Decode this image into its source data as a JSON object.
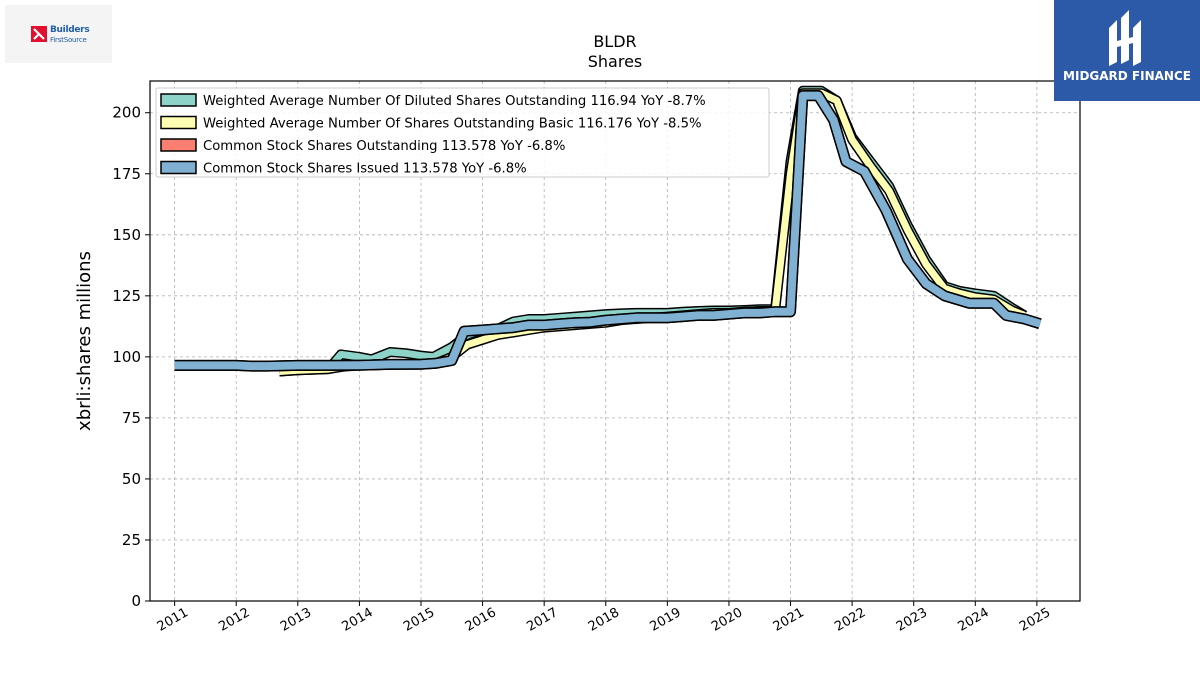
{
  "branding": {
    "company_logo_text_1": "Builders",
    "company_logo_text_2": "FirstSource",
    "partner_logo_text": "MIDGARD FINANCE"
  },
  "chart_data": {
    "type": "area",
    "title": "BLDR",
    "subtitle": "Shares",
    "xlabel": "",
    "ylabel": "xbrli:shares millions",
    "xlim": [
      2010.6,
      2025.7
    ],
    "ylim": [
      0,
      213
    ],
    "grid": true,
    "legend_position": "top-left",
    "x_ticks": [
      "2011",
      "2012",
      "2013",
      "2014",
      "2015",
      "2016",
      "2017",
      "2018",
      "2019",
      "2020",
      "2021",
      "2022",
      "2023",
      "2024",
      "2025"
    ],
    "y_ticks": [
      0,
      25,
      50,
      75,
      100,
      125,
      150,
      175,
      200
    ],
    "series": [
      {
        "name": "Weighted Average Number Of Diluted Shares Outstanding",
        "legend_label": "Weighted Average Number Of Diluted Shares Outstanding  116.94 YoY -8.7%",
        "color": "#8dd3c7",
        "x": [
          2012.7,
          2013.0,
          2013.5,
          2013.7,
          2014.0,
          2014.2,
          2014.5,
          2014.75,
          2015.0,
          2015.2,
          2015.5,
          2015.75,
          2016.0,
          2016.25,
          2016.5,
          2016.75,
          2017.0,
          2017.25,
          2017.5,
          2017.75,
          2018.0,
          2018.25,
          2018.5,
          2018.75,
          2019.0,
          2019.25,
          2019.5,
          2019.75,
          2020.0,
          2020.25,
          2020.5,
          2020.75,
          2021.0,
          2021.2,
          2021.5,
          2021.75,
          2022.0,
          2022.3,
          2022.6,
          2022.9,
          2023.2,
          2023.5,
          2023.75,
          2024.0,
          2024.3,
          2024.6,
          2024.8
        ],
        "values": [
          94,
          94.5,
          95,
          101,
          100,
          99,
          102,
          101.5,
          100.5,
          100,
          104,
          109,
          111,
          111.5,
          114.5,
          115.5,
          115.5,
          116,
          116.5,
          117,
          117.5,
          117.8,
          118,
          118,
          118,
          118.5,
          118.8,
          119,
          119,
          119.2,
          119.5,
          119.5,
          180,
          209,
          209,
          205,
          190,
          180,
          170,
          154,
          140,
          129,
          127,
          126,
          125,
          120,
          117
        ]
      },
      {
        "name": "Weighted Average Number Of Shares Outstanding Basic",
        "legend_label": "Weighted Average Number Of Shares Outstanding Basic  116.176 YoY -8.5%",
        "color": "#ffffb3",
        "x": [
          2012.7,
          2013.0,
          2013.5,
          2013.75,
          2014.0,
          2014.25,
          2014.5,
          2014.75,
          2015.0,
          2015.25,
          2015.5,
          2015.75,
          2016.0,
          2016.25,
          2016.5,
          2016.75,
          2017.0,
          2017.25,
          2017.5,
          2017.75,
          2018.0,
          2018.25,
          2018.5,
          2018.75,
          2019.0,
          2019.25,
          2019.5,
          2019.75,
          2020.0,
          2020.25,
          2020.5,
          2020.75,
          2021.0,
          2021.2,
          2021.5,
          2021.75,
          2022.0,
          2022.3,
          2022.6,
          2022.9,
          2023.2,
          2023.5,
          2023.75,
          2024.0,
          2024.3,
          2024.6,
          2024.8
        ],
        "values": [
          94,
          94.5,
          95,
          96,
          96.5,
          97,
          97,
          97,
          97,
          97.5,
          100,
          105,
          107,
          109,
          110,
          111,
          112,
          112.5,
          113,
          113.5,
          114,
          115,
          115.5,
          116,
          116.5,
          117,
          117.5,
          118,
          118,
          118.5,
          118.8,
          118.8,
          175,
          208,
          208,
          205,
          189,
          178,
          168,
          152,
          138,
          128,
          126,
          124.5,
          123.5,
          119,
          117
        ]
      },
      {
        "name": "Common Stock Shares Outstanding",
        "legend_label": "Common Stock Shares Outstanding  113.578 YoY -6.8%",
        "color": "#fb8072",
        "x": [
          2011.0,
          2011.5,
          2012.0,
          2012.25,
          2012.5,
          2013.0,
          2013.5,
          2014.0,
          2014.5,
          2015.0,
          2015.25,
          2015.5,
          2015.7,
          2016.0,
          2016.25,
          2016.5,
          2016.75,
          2017.0,
          2017.25,
          2017.5,
          2017.75,
          2018.0,
          2018.25,
          2018.5,
          2018.75,
          2019.0,
          2019.25,
          2019.5,
          2019.75,
          2020.0,
          2020.25,
          2020.5,
          2020.75,
          2021.0,
          2021.2,
          2021.45,
          2021.7,
          2021.9,
          2022.2,
          2022.55,
          2022.9,
          2023.2,
          2023.5,
          2023.9,
          2024.1,
          2024.3,
          2024.5,
          2024.8,
          2025.05
        ],
        "values": [
          96.5,
          96.5,
          96.5,
          96.2,
          96.2,
          96.5,
          96.5,
          96.6,
          96.9,
          97,
          97.4,
          98.5,
          110.5,
          111,
          111.5,
          112,
          113,
          113,
          113.5,
          114,
          114.2,
          115,
          115.5,
          116,
          116,
          116,
          116.5,
          117,
          117,
          117.5,
          118,
          118,
          118.5,
          118.5,
          207,
          207,
          197,
          180,
          176,
          160,
          140,
          130,
          125,
          122,
          122,
          122,
          117,
          115.5,
          113.578
        ]
      },
      {
        "name": "Common Stock Shares Issued",
        "legend_label": "Common Stock Shares Issued  113.578 YoY -6.8%",
        "color": "#80b1d3",
        "x": [
          2011.0,
          2011.5,
          2012.0,
          2012.25,
          2012.5,
          2013.0,
          2013.5,
          2014.0,
          2014.5,
          2015.0,
          2015.25,
          2015.5,
          2015.7,
          2016.0,
          2016.25,
          2016.5,
          2016.75,
          2017.0,
          2017.25,
          2017.5,
          2017.75,
          2018.0,
          2018.25,
          2018.5,
          2018.75,
          2019.0,
          2019.25,
          2019.5,
          2019.75,
          2020.0,
          2020.25,
          2020.5,
          2020.75,
          2021.0,
          2021.2,
          2021.45,
          2021.7,
          2021.9,
          2022.2,
          2022.55,
          2022.9,
          2023.2,
          2023.5,
          2023.9,
          2024.1,
          2024.3,
          2024.5,
          2024.8,
          2025.05
        ],
        "values": [
          96.5,
          96.5,
          96.5,
          96.2,
          96.2,
          96.5,
          96.5,
          96.6,
          96.9,
          97,
          97.4,
          98.5,
          110.5,
          111,
          111.5,
          112,
          113,
          113,
          113.5,
          114,
          114.2,
          115,
          115.5,
          116,
          116,
          116,
          116.5,
          117,
          117,
          117.5,
          118,
          118,
          118.5,
          118.5,
          207,
          207,
          197,
          180,
          176,
          160,
          140,
          130,
          125,
          122,
          122,
          122,
          117,
          115.5,
          113.578
        ]
      }
    ]
  }
}
